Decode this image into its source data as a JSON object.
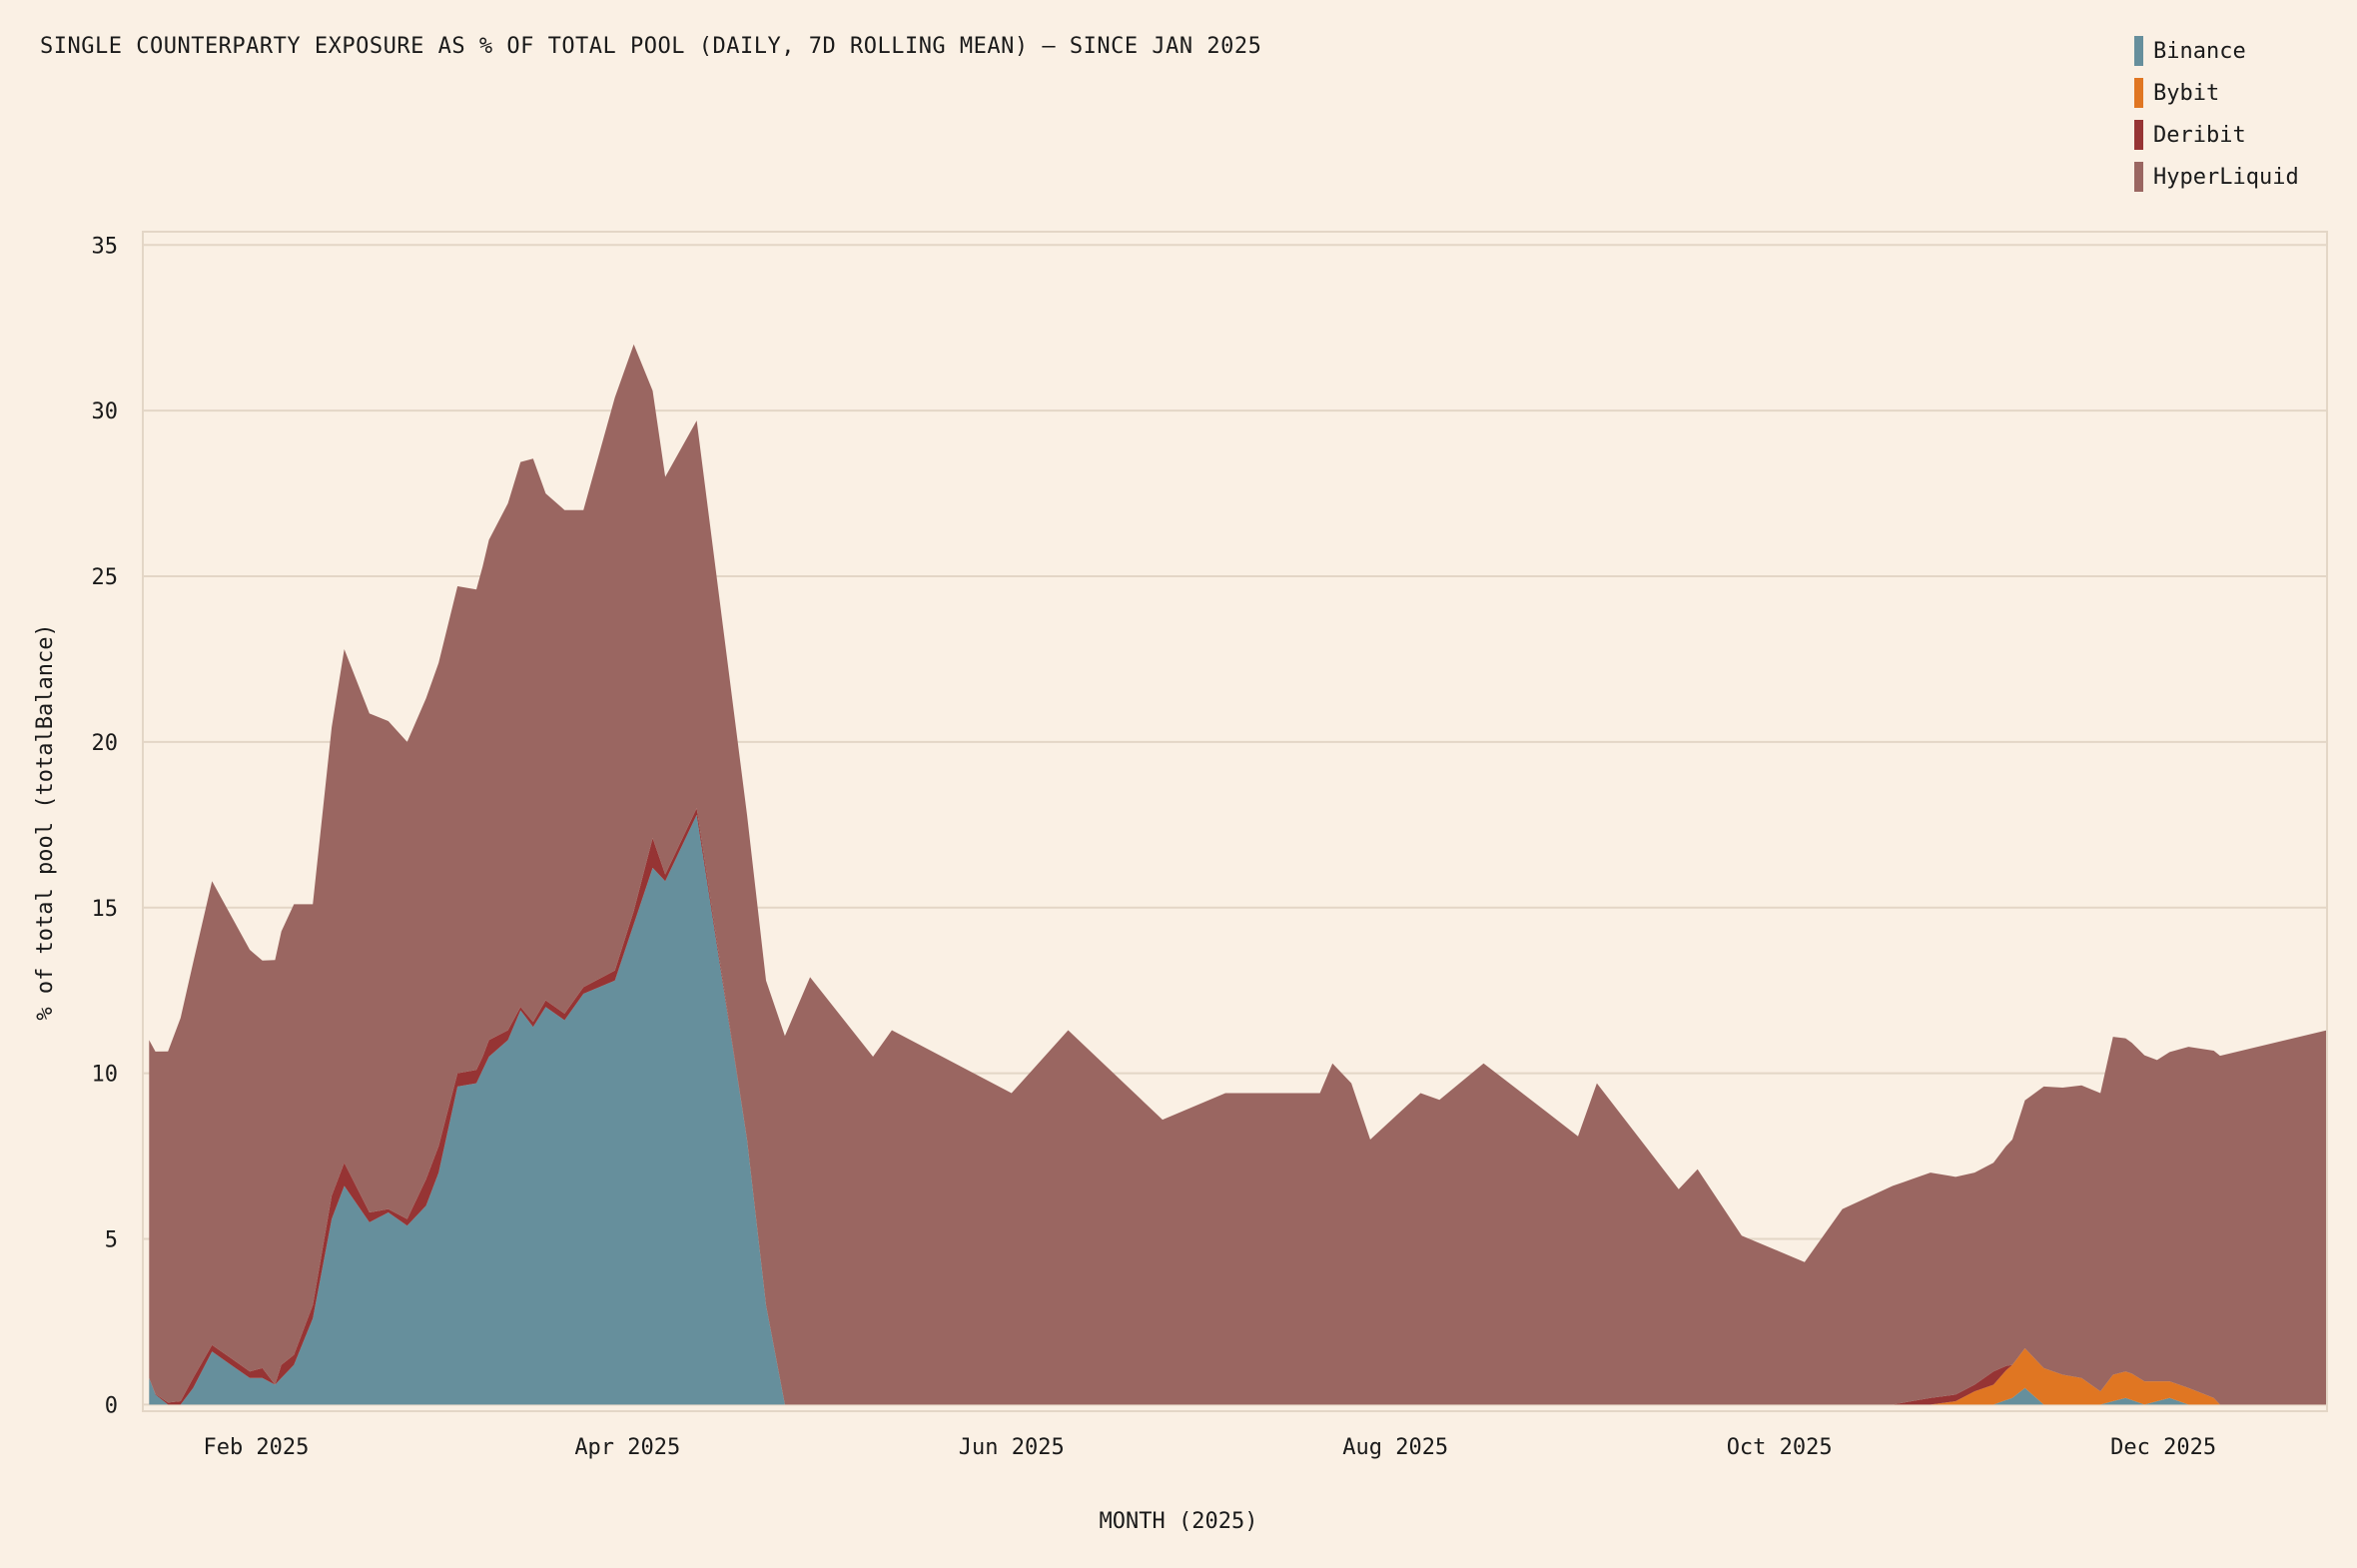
{
  "chart_data": {
    "type": "area",
    "stacked": true,
    "title": "SINGLE COUNTERPARTY EXPOSURE AS % OF TOTAL POOL (DAILY, 7D ROLLING MEAN) — SINCE JAN 2025",
    "xlabel": "MONTH (2025)",
    "ylabel": "% of total pool (totalBalance)",
    "x_ticks": [
      "2025-02-01",
      "2025-04-01",
      "2025-06-01",
      "2025-08-01",
      "2025-10-01",
      "2025-12-01"
    ],
    "x_tick_labels": [
      "Feb 2025",
      "Apr 2025",
      "Jun 2025",
      "Aug 2025",
      "Oct 2025",
      "Dec 2025"
    ],
    "xlim": [
      "2025-01-14",
      "2025-12-27"
    ],
    "y_ticks": [
      0,
      5,
      10,
      15,
      20,
      25,
      30,
      35
    ],
    "ylim": [
      -0.2,
      35.4
    ],
    "grid": "horizontal",
    "legend_position": "top-right",
    "colors": {
      "Binance": "#668f9c",
      "Bybit": "#e07622",
      "Deribit": "#963434",
      "HyperLiquid": "#9a6661",
      "background": "#faf0e4",
      "grid": "#e3d6c6"
    },
    "series": [
      {
        "name": "Binance",
        "color": "#668f9c",
        "points": [
          [
            "2025-01-15",
            0.8
          ],
          [
            "2025-01-16",
            0.3
          ],
          [
            "2025-01-18",
            0
          ],
          [
            "2025-01-20",
            0
          ],
          [
            "2025-01-22",
            0.5
          ],
          [
            "2025-01-25",
            1.6
          ],
          [
            "2025-01-28",
            1.2
          ],
          [
            "2025-01-31",
            0.8
          ],
          [
            "2025-02-02",
            0.8
          ],
          [
            "2025-02-04",
            0.6
          ],
          [
            "2025-02-05",
            0.8
          ],
          [
            "2025-02-07",
            1.2
          ],
          [
            "2025-02-10",
            2.6
          ],
          [
            "2025-02-13",
            5.6
          ],
          [
            "2025-02-15",
            6.6
          ],
          [
            "2025-02-19",
            5.5
          ],
          [
            "2025-02-22",
            5.8
          ],
          [
            "2025-02-25",
            5.4
          ],
          [
            "2025-02-28",
            6
          ],
          [
            "2025-03-02",
            7
          ],
          [
            "2025-03-05",
            9.6
          ],
          [
            "2025-03-08",
            9.7
          ],
          [
            "2025-03-10",
            10.5
          ],
          [
            "2025-03-13",
            11
          ],
          [
            "2025-03-15",
            11.9
          ],
          [
            "2025-03-17",
            11.4
          ],
          [
            "2025-03-19",
            12
          ],
          [
            "2025-03-22",
            11.6
          ],
          [
            "2025-03-25",
            12.4
          ],
          [
            "2025-03-30",
            12.8
          ],
          [
            "2025-04-02",
            14.5
          ],
          [
            "2025-04-05",
            16.2
          ],
          [
            "2025-04-07",
            15.8
          ],
          [
            "2025-04-12",
            17.8
          ],
          [
            "2025-04-20",
            8
          ],
          [
            "2025-04-23",
            3
          ],
          [
            "2025-04-26",
            0
          ],
          [
            "2025-05-10",
            0
          ],
          [
            "2025-06-15",
            0
          ],
          [
            "2025-07-20",
            0
          ],
          [
            "2025-08-25",
            0
          ],
          [
            "2025-10-01",
            0
          ],
          [
            "2025-10-25",
            0
          ],
          [
            "2025-11-04",
            0
          ],
          [
            "2025-11-07",
            0.2
          ],
          [
            "2025-11-09",
            0.5
          ],
          [
            "2025-11-12",
            0
          ],
          [
            "2025-11-21",
            0
          ],
          [
            "2025-11-25",
            0.2
          ],
          [
            "2025-11-28",
            0
          ],
          [
            "2025-12-02",
            0.2
          ],
          [
            "2025-12-05",
            0
          ],
          [
            "2025-12-27",
            0
          ]
        ]
      },
      {
        "name": "Bybit",
        "color": "#e07622",
        "points": [
          [
            "2025-01-15",
            0
          ],
          [
            "2025-10-25",
            0
          ],
          [
            "2025-10-29",
            0.1
          ],
          [
            "2025-11-01",
            0.4
          ],
          [
            "2025-11-04",
            0.6
          ],
          [
            "2025-11-06",
            0.9
          ],
          [
            "2025-11-09",
            1.2
          ],
          [
            "2025-11-12",
            1.1
          ],
          [
            "2025-11-15",
            0.9
          ],
          [
            "2025-11-18",
            0.8
          ],
          [
            "2025-11-21",
            0.4
          ],
          [
            "2025-11-23",
            0.8
          ],
          [
            "2025-11-26",
            0.8
          ],
          [
            "2025-11-30",
            0.6
          ],
          [
            "2025-12-02",
            0.5
          ],
          [
            "2025-12-05",
            0.5
          ],
          [
            "2025-12-09",
            0.2
          ],
          [
            "2025-12-10",
            0
          ],
          [
            "2025-12-27",
            0
          ]
        ]
      },
      {
        "name": "Deribit",
        "color": "#963434",
        "points": [
          [
            "2025-01-15",
            0
          ],
          [
            "2025-01-20",
            0.1
          ],
          [
            "2025-01-22",
            0.3
          ],
          [
            "2025-01-25",
            0.2
          ],
          [
            "2025-01-31",
            0.2
          ],
          [
            "2025-02-02",
            0.3
          ],
          [
            "2025-02-04",
            0
          ],
          [
            "2025-02-05",
            0.4
          ],
          [
            "2025-02-07",
            0.3
          ],
          [
            "2025-02-10",
            0.4
          ],
          [
            "2025-02-13",
            0.7
          ],
          [
            "2025-02-15",
            0.7
          ],
          [
            "2025-02-19",
            0.3
          ],
          [
            "2025-02-22",
            0.1
          ],
          [
            "2025-02-25",
            0.2
          ],
          [
            "2025-02-28",
            0.8
          ],
          [
            "2025-03-02",
            0.8
          ],
          [
            "2025-03-05",
            0.4
          ],
          [
            "2025-03-08",
            0.4
          ],
          [
            "2025-03-09",
            0.4
          ],
          [
            "2025-03-10",
            0.5
          ],
          [
            "2025-03-13",
            0.3
          ],
          [
            "2025-03-15",
            0.1
          ],
          [
            "2025-03-19",
            0.2
          ],
          [
            "2025-03-22",
            0.2
          ],
          [
            "2025-03-25",
            0.2
          ],
          [
            "2025-03-30",
            0.3
          ],
          [
            "2025-04-02",
            0.4
          ],
          [
            "2025-04-05",
            0.9
          ],
          [
            "2025-04-07",
            0.2
          ],
          [
            "2025-04-12",
            0.2
          ],
          [
            "2025-04-20",
            0
          ],
          [
            "2025-10-19",
            0
          ],
          [
            "2025-10-22",
            0.1
          ],
          [
            "2025-10-25",
            0.2
          ],
          [
            "2025-10-28",
            0.2
          ],
          [
            "2025-11-01",
            0.2
          ],
          [
            "2025-11-04",
            0.4
          ],
          [
            "2025-11-07",
            0
          ],
          [
            "2025-12-27",
            0
          ]
        ]
      },
      {
        "name": "HyperLiquid",
        "color": "#9a6661",
        "points": [
          [
            "2025-01-15",
            10.2
          ],
          [
            "2025-01-18",
            10.6
          ],
          [
            "2025-01-25",
            14
          ],
          [
            "2025-02-02",
            12.3
          ],
          [
            "2025-02-07",
            13.6
          ],
          [
            "2025-02-10",
            12.1
          ],
          [
            "2025-02-15",
            15.5
          ],
          [
            "2025-02-25",
            14.4
          ],
          [
            "2025-03-05",
            14.7
          ],
          [
            "2025-03-08",
            14.5
          ],
          [
            "2025-03-10",
            15.1
          ],
          [
            "2025-03-13",
            15.9
          ],
          [
            "2025-03-17",
            17
          ],
          [
            "2025-03-19",
            15.3
          ],
          [
            "2025-03-22",
            15.2
          ],
          [
            "2025-03-25",
            14.4
          ],
          [
            "2025-03-30",
            17.3
          ],
          [
            "2025-04-02",
            17.1
          ],
          [
            "2025-04-05",
            13.5
          ],
          [
            "2025-04-07",
            12
          ],
          [
            "2025-04-12",
            11.7
          ],
          [
            "2025-04-20",
            9.8
          ],
          [
            "2025-04-23",
            9.8
          ],
          [
            "2025-04-30",
            12.9
          ],
          [
            "2025-05-10",
            10.5
          ],
          [
            "2025-05-13",
            11.3
          ],
          [
            "2025-06-01",
            9.4
          ],
          [
            "2025-06-10",
            11.3
          ],
          [
            "2025-06-25",
            8.6
          ],
          [
            "2025-07-05",
            9.4
          ],
          [
            "2025-07-20",
            9.4
          ],
          [
            "2025-07-22",
            10.3
          ],
          [
            "2025-07-25",
            9.7
          ],
          [
            "2025-07-28",
            8
          ],
          [
            "2025-08-05",
            9.4
          ],
          [
            "2025-08-08",
            9.2
          ],
          [
            "2025-08-15",
            10.3
          ],
          [
            "2025-08-30",
            8.1
          ],
          [
            "2025-09-02",
            9.7
          ],
          [
            "2025-09-15",
            6.5
          ],
          [
            "2025-09-18",
            7.1
          ],
          [
            "2025-09-25",
            5.1
          ],
          [
            "2025-10-05",
            4.3
          ],
          [
            "2025-10-11",
            5.9
          ],
          [
            "2025-10-19",
            6.6
          ],
          [
            "2025-10-25",
            6.8
          ],
          [
            "2025-11-01",
            6.4
          ],
          [
            "2025-11-04",
            6.3
          ],
          [
            "2025-11-07",
            6.8
          ],
          [
            "2025-11-12",
            8.5
          ],
          [
            "2025-11-21",
            9.0
          ],
          [
            "2025-11-23",
            10.2
          ],
          [
            "2025-11-30",
            9.7
          ],
          [
            "2025-12-05",
            10.3
          ],
          [
            "2025-12-27",
            11.3
          ]
        ]
      }
    ]
  }
}
